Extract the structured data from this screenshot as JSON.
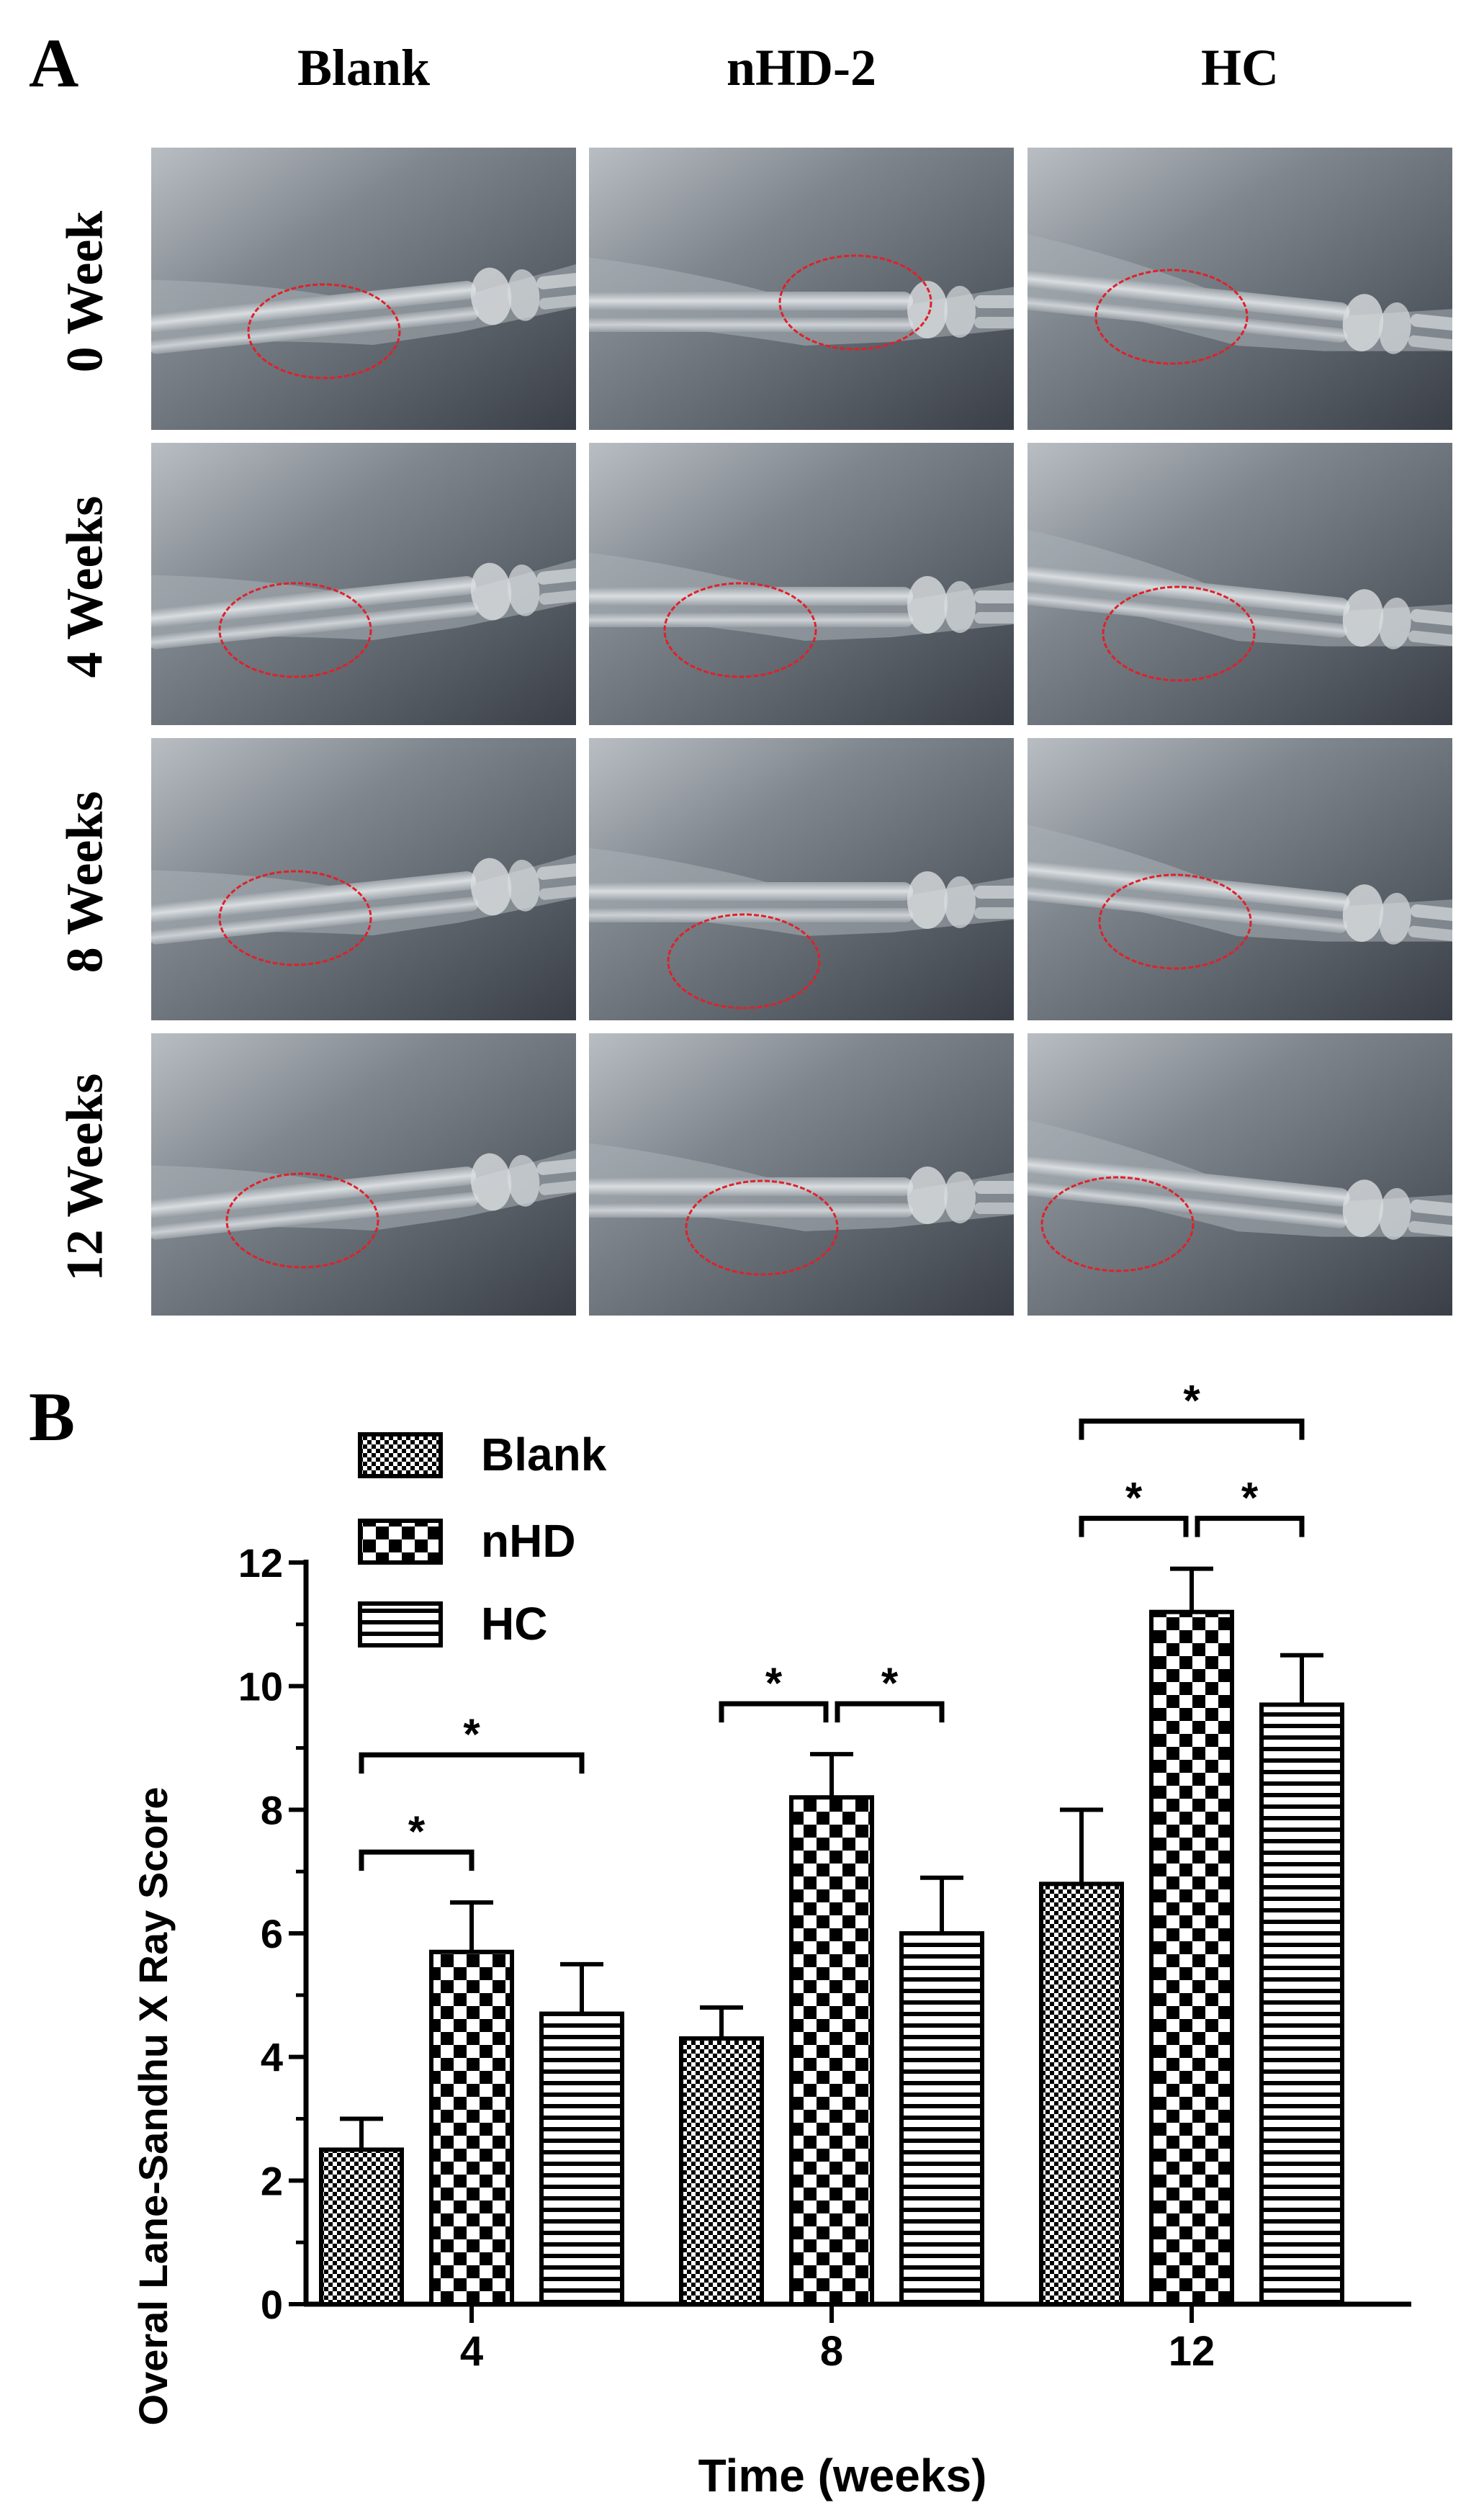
{
  "panel_a": {
    "label": "A",
    "columns": [
      "Blank",
      "nHD-2",
      "HC"
    ],
    "rows": [
      "0 Week",
      "4 Weeks",
      "8 Weeks",
      "12 Weeks"
    ]
  },
  "panel_b": {
    "label": "B"
  },
  "colors": {
    "circle": "#e0202a",
    "xray_dark": "#3a3f47",
    "bone": "#d9dde0"
  },
  "chart_data": {
    "type": "bar",
    "categories": [
      "4",
      "8",
      "12"
    ],
    "series": [
      {
        "name": "Blank",
        "values": [
          2.5,
          4.3,
          6.8
        ],
        "errors": [
          0.5,
          0.5,
          1.2
        ],
        "pattern": "fine-checker"
      },
      {
        "name": "nHD",
        "values": [
          5.7,
          8.2,
          11.2
        ],
        "errors": [
          0.8,
          0.7,
          0.7
        ],
        "pattern": "coarse-checker"
      },
      {
        "name": "HC",
        "values": [
          4.7,
          6.0,
          9.7
        ],
        "errors": [
          0.8,
          0.9,
          0.8
        ],
        "pattern": "horizontal-stripes"
      }
    ],
    "xlabel": "Time (weeks)",
    "ylabel": "Overal Lane-Sandhu X Ray Score",
    "ylim": [
      0,
      12
    ],
    "yticks": [
      "0",
      "2",
      "4",
      "6",
      "8",
      "10",
      "12"
    ],
    "legend_placement": "top-left",
    "significance_marker": "*",
    "comparisons": [
      {
        "group": 0,
        "from": 0,
        "to": 1,
        "level": 0
      },
      {
        "group": 0,
        "from": 0,
        "to": 2,
        "level": 1
      },
      {
        "group": 1,
        "from": 0,
        "to": 1,
        "level": 0
      },
      {
        "group": 1,
        "from": 1,
        "to": 2,
        "level": 0
      },
      {
        "group": 2,
        "from": 0,
        "to": 1,
        "level": 0
      },
      {
        "group": 2,
        "from": 1,
        "to": 2,
        "level": 0
      },
      {
        "group": 2,
        "from": 0,
        "to": 2,
        "level": 1
      }
    ]
  }
}
